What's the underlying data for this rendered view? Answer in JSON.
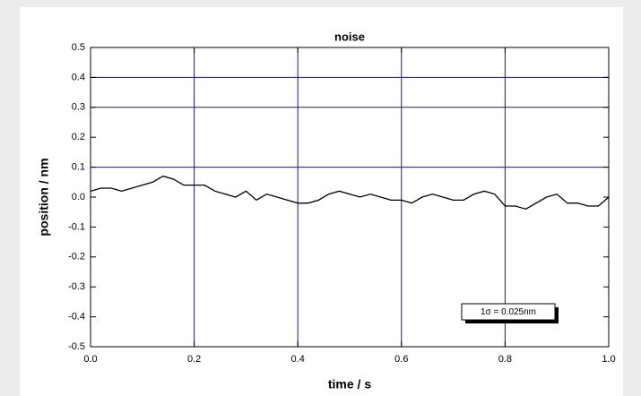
{
  "chart_data": {
    "type": "line",
    "title": "noise",
    "x_label": "time  / s",
    "y_label": "position  / nm",
    "annotation": "1σ = 0.025nm",
    "x": [
      0.0,
      0.02,
      0.04,
      0.06,
      0.08,
      0.1,
      0.12,
      0.14,
      0.16,
      0.18,
      0.2,
      0.22,
      0.24,
      0.26,
      0.28,
      0.3,
      0.32,
      0.34,
      0.36,
      0.38,
      0.4,
      0.42,
      0.44,
      0.46,
      0.48,
      0.5,
      0.52,
      0.54,
      0.56,
      0.58,
      0.6,
      0.62,
      0.64,
      0.66,
      0.68,
      0.7,
      0.72,
      0.74,
      0.76,
      0.78,
      0.8,
      0.82,
      0.84,
      0.86,
      0.88,
      0.9,
      0.92,
      0.94,
      0.96,
      0.98,
      1.0
    ],
    "series": [
      {
        "color": "#000000",
        "values": [
          0.02,
          0.03,
          0.03,
          0.02,
          0.03,
          0.04,
          0.05,
          0.07,
          0.06,
          0.04,
          0.04,
          0.04,
          0.02,
          0.01,
          0.0,
          0.02,
          -0.01,
          0.01,
          0.0,
          -0.01,
          -0.02,
          -0.02,
          -0.01,
          0.01,
          0.02,
          0.01,
          0.0,
          0.01,
          0.0,
          -0.01,
          -0.01,
          -0.02,
          0.0,
          0.01,
          0.0,
          -0.01,
          -0.01,
          0.01,
          0.02,
          0.01,
          -0.03,
          -0.03,
          -0.04,
          -0.02,
          0.0,
          0.01,
          -0.02,
          -0.02,
          -0.03,
          -0.03,
          0.0
        ]
      }
    ],
    "xlim": [
      0,
      1
    ],
    "ylim": [
      -0.5,
      0.5
    ],
    "xticks": [
      {
        "value": 0,
        "label": "0.0"
      },
      0.2,
      0.4,
      0.6,
      0.8,
      {
        "value": 1,
        "label": "1.0"
      }
    ],
    "yticks": [
      -0.5,
      -0.4,
      -0.3,
      -0.2,
      -0.1,
      {
        "value": 0,
        "label": "0.0"
      },
      0.1,
      0.2,
      0.3,
      0.4,
      0.5
    ],
    "x_grid_lines": [
      0.2,
      0.4,
      0.6,
      0.8
    ],
    "y_grid_lines": [
      0.1,
      0.3,
      0.4
    ],
    "grid_color": "#1c1c6e"
  }
}
